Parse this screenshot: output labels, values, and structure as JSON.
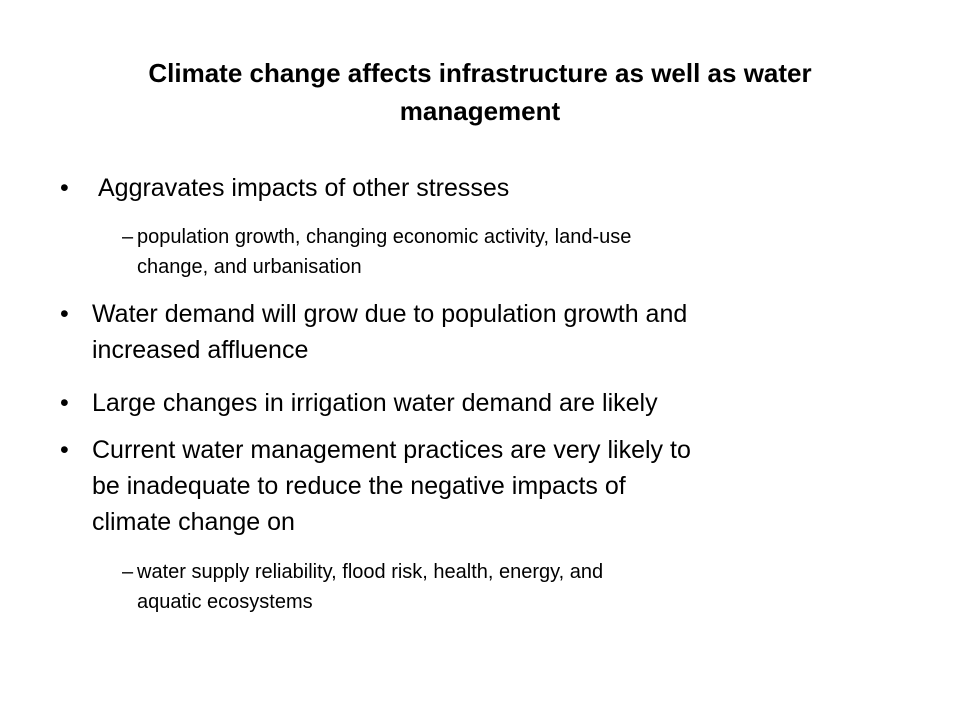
{
  "slide": {
    "title": [
      "Climate change affects infrastructure as well as water",
      "management"
    ],
    "bullets": [
      {
        "lines": [
          "Aggravates impacts of other stresses"
        ],
        "subbullets": [
          {
            "lines": [
              "population growth, changing economic activity, land-use",
              "change, and urbanisation"
            ]
          }
        ]
      },
      {
        "lines": [
          "Water demand will grow due to population growth and",
          "increased affluence"
        ]
      },
      {
        "lines": [
          "Large changes in irrigation water demand are likely"
        ]
      },
      {
        "lines": [
          "Current water management practices are very likely to",
          "be inadequate to reduce the negative impacts of",
          "climate change on"
        ],
        "subbullets": [
          {
            "lines": [
              "water supply reliability, flood risk, health, energy, and",
              "aquatic ecosystems"
            ]
          }
        ]
      }
    ]
  }
}
